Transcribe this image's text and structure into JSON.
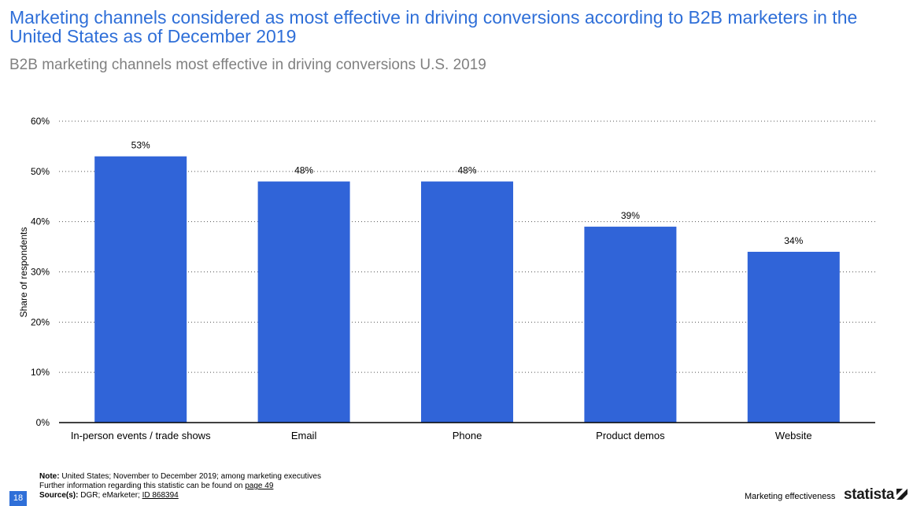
{
  "header": {
    "title": "Marketing channels considered as most effective in driving conversions according to B2B marketers in the United States as of December 2019",
    "subtitle": "B2B marketing channels most effective in driving conversions U.S. 2019"
  },
  "chart_data": {
    "type": "bar",
    "title": "Marketing channels considered as most effective in driving conversions according to B2B marketers in the United States as of December 2019",
    "subtitle": "B2B marketing channels most effective in driving conversions U.S. 2019",
    "categories": [
      "In-person events / trade shows",
      "Email",
      "Phone",
      "Product demos",
      "Website"
    ],
    "values": [
      53,
      48,
      48,
      39,
      34
    ],
    "value_labels": [
      "53%",
      "48%",
      "48%",
      "39%",
      "34%"
    ],
    "xlabel": "",
    "ylabel": "Share of respondents",
    "ylim": [
      0,
      60
    ],
    "yticks": [
      0,
      10,
      20,
      30,
      40,
      50,
      60
    ],
    "ytick_labels": [
      "0%",
      "10%",
      "20%",
      "30%",
      "40%",
      "50%",
      "60%"
    ],
    "grid": true,
    "bar_color": "#3064d8"
  },
  "footer": {
    "note_label": "Note:",
    "note_text": " United States; November to December 2019; among marketing executives",
    "further_text": "Further information regarding this statistic can be found on ",
    "further_link": "page 49",
    "source_label": "Source(s):",
    "source_text": " DGR; eMarketer; ",
    "source_id": "ID 868394",
    "page_number": "18",
    "section": "Marketing effectiveness",
    "brand": "statista"
  }
}
